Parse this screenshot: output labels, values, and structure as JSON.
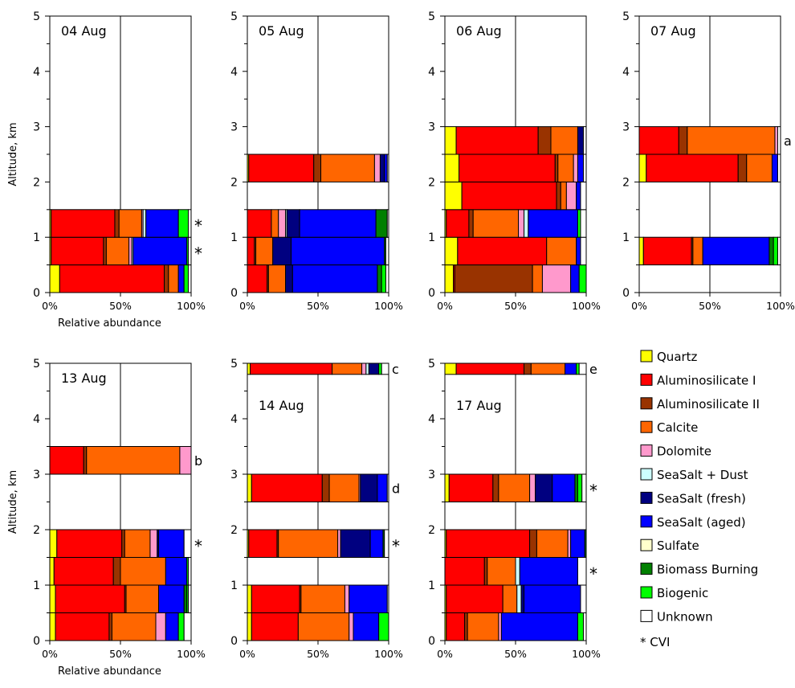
{
  "chart_data": {
    "type": "bar",
    "orientation": "horizontal-stacked-100",
    "ylabel": "Altitude, km",
    "xlabel": "Relative abundance",
    "ylim": [
      0,
      5
    ],
    "xlim": [
      0,
      100
    ],
    "yticks": [
      "0",
      "1",
      "2",
      "3",
      "4",
      "5"
    ],
    "xticks": [
      "0%",
      "50%",
      "100%"
    ],
    "cvi_marker": "*",
    "legend": {
      "placement": "bottom-right",
      "cvi_entry": "* CVI",
      "entries": [
        {
          "name": "Quartz",
          "color": "#ffff00"
        },
        {
          "name": "Aluminosilicate I",
          "color": "#ff0000"
        },
        {
          "name": "Aluminosilicate II",
          "color": "#993300"
        },
        {
          "name": "Calcite",
          "color": "#ff6600"
        },
        {
          "name": "Dolomite",
          "color": "#ff99cc"
        },
        {
          "name": "SeaSalt + Dust",
          "color": "#ccffff"
        },
        {
          "name": "SeaSalt (fresh)",
          "color": "#000080"
        },
        {
          "name": "SeaSalt (aged)",
          "color": "#0000ff"
        },
        {
          "name": "Sulfate",
          "color": "#ffffcc"
        },
        {
          "name": "Biomass Burning",
          "color": "#008000"
        },
        {
          "name": "Biogenic",
          "color": "#00ff00"
        },
        {
          "name": "Unknown",
          "color": "#ffffff"
        }
      ]
    },
    "panels": [
      {
        "date": "04 Aug",
        "show_xlabel": true,
        "bars": [
          {
            "alt": [
              0,
              0.5
            ],
            "values": [
              7,
              74,
              3,
              7,
              0,
              0,
              0,
              4,
              0,
              0,
              3,
              2
            ]
          },
          {
            "alt": [
              0.5,
              1.0
            ],
            "values": [
              1,
              37,
              2,
              16,
              2,
              1,
              0,
              38,
              0,
              0,
              1,
              2
            ],
            "note": "*"
          },
          {
            "alt": [
              1.0,
              1.5
            ],
            "values": [
              1,
              45,
              3,
              16,
              1,
              2,
              0,
              23,
              0,
              0,
              7,
              2
            ],
            "note": "*"
          }
        ]
      },
      {
        "date": "05 Aug",
        "show_xlabel": false,
        "bars": [
          {
            "alt": [
              0,
              0.5
            ],
            "values": [
              0,
              14,
              1,
              12,
              0,
              0,
              5,
              60,
              0,
              3,
              3,
              2
            ]
          },
          {
            "alt": [
              0.5,
              1.0
            ],
            "values": [
              0,
              5,
              1,
              12,
              0,
              0,
              13,
              66,
              0,
              1,
              0,
              2
            ]
          },
          {
            "alt": [
              1.0,
              1.5
            ],
            "values": [
              0,
              17,
              0,
              5,
              5,
              1,
              9,
              54,
              0,
              8,
              0,
              1
            ]
          },
          {
            "alt": [
              2.0,
              2.5
            ],
            "values": [
              1,
              46,
              5,
              38,
              4,
              0,
              3,
              2,
              0,
              0,
              0,
              1
            ]
          }
        ]
      },
      {
        "date": "06 Aug",
        "show_xlabel": false,
        "bars": [
          {
            "alt": [
              0,
              0.5
            ],
            "values": [
              6,
              1,
              55,
              7,
              20,
              0,
              0,
              6,
              0,
              0,
              5,
              0
            ]
          },
          {
            "alt": [
              0.5,
              1.0
            ],
            "values": [
              9,
              63,
              0,
              21,
              0,
              0,
              0,
              3,
              0,
              0,
              0,
              4
            ]
          },
          {
            "alt": [
              1.0,
              1.5
            ],
            "values": [
              1,
              16,
              3,
              32,
              4,
              3,
              0,
              35,
              0,
              0,
              2,
              4
            ]
          },
          {
            "alt": [
              1.5,
              2.0
            ],
            "values": [
              12,
              67,
              3,
              4,
              7,
              0,
              0,
              3,
              0,
              0,
              0,
              4
            ]
          },
          {
            "alt": [
              2.0,
              2.5
            ],
            "values": [
              10,
              68,
              2,
              11,
              3,
              0,
              0,
              4,
              0,
              0,
              0,
              2
            ]
          },
          {
            "alt": [
              2.5,
              3.0
            ],
            "values": [
              8,
              58,
              9,
              19,
              0,
              0,
              4,
              0,
              0,
              0,
              0,
              2
            ]
          }
        ]
      },
      {
        "date": "07 Aug",
        "show_xlabel": false,
        "bars": [
          {
            "alt": [
              0.5,
              1.0
            ],
            "values": [
              3,
              34,
              1,
              7,
              0,
              0,
              0,
              47,
              0,
              3,
              3,
              2
            ]
          },
          {
            "alt": [
              2.0,
              2.5
            ],
            "values": [
              5,
              65,
              6,
              18,
              0,
              0,
              0,
              4,
              0,
              0,
              0,
              2
            ]
          },
          {
            "alt": [
              2.5,
              3.0
            ],
            "values": [
              0,
              28,
              6,
              62,
              2,
              0,
              0,
              0,
              0,
              0,
              0,
              2
            ],
            "note": "a"
          }
        ]
      },
      {
        "date": "13 Aug",
        "show_xlabel": true,
        "bars": [
          {
            "alt": [
              0,
              0.5
            ],
            "values": [
              4,
              38,
              2,
              31,
              7,
              0,
              0,
              9,
              0,
              0,
              4,
              5
            ]
          },
          {
            "alt": [
              0.5,
              1.0
            ],
            "values": [
              4,
              49,
              1,
              23,
              0,
              0,
              0,
              18,
              0,
              2,
              1,
              2
            ]
          },
          {
            "alt": [
              1.0,
              1.5
            ],
            "values": [
              3,
              42,
              5,
              32,
              0,
              0,
              0,
              15,
              0,
              0,
              1,
              2
            ]
          },
          {
            "alt": [
              1.5,
              2.0
            ],
            "values": [
              5,
              46,
              2,
              18,
              5,
              0,
              1,
              18,
              0,
              0,
              0,
              5
            ],
            "note": "*"
          },
          {
            "alt": [
              3.0,
              3.5
            ],
            "values": [
              0,
              24,
              2,
              66,
              8,
              0,
              0,
              0,
              0,
              0,
              0,
              0
            ],
            "note": "b"
          }
        ]
      },
      {
        "date": "14 Aug",
        "show_xlabel": false,
        "bars": [
          {
            "alt": [
              0,
              0.5
            ],
            "values": [
              3,
              33,
              0,
              36,
              3,
              0,
              0,
              18,
              0,
              0,
              7,
              0
            ]
          },
          {
            "alt": [
              0.5,
              1.0
            ],
            "values": [
              3,
              34,
              1,
              31,
              3,
              0,
              0,
              27,
              0,
              0,
              0,
              1
            ]
          },
          {
            "alt": [
              1.5,
              2.0
            ],
            "values": [
              1,
              20,
              1,
              42,
              2,
              0,
              21,
              9,
              0,
              1,
              0,
              3
            ],
            "note": "*"
          },
          {
            "alt": [
              2.5,
              3.0
            ],
            "values": [
              3,
              50,
              5,
              21,
              1,
              0,
              12,
              7,
              0,
              0,
              0,
              1
            ],
            "note": "d"
          },
          {
            "alt": [
              4.8,
              5.0
            ],
            "values": [
              2,
              58,
              0,
              21,
              3,
              2,
              7,
              0,
              0,
              0,
              2,
              5
            ],
            "note": "c"
          }
        ]
      },
      {
        "date": "17 Aug",
        "show_xlabel": false,
        "bars": [
          {
            "alt": [
              0,
              0.5
            ],
            "values": [
              1,
              13,
              2,
              22,
              2,
              0,
              0,
              54,
              0,
              0,
              4,
              2
            ]
          },
          {
            "alt": [
              0.5,
              1.0
            ],
            "values": [
              1,
              40,
              0,
              10,
              0,
              3,
              2,
              40,
              0,
              0,
              0,
              4
            ]
          },
          {
            "alt": [
              1.0,
              1.5
            ],
            "values": [
              0,
              28,
              2,
              20,
              0,
              3,
              0,
              41,
              0,
              0,
              0,
              6
            ],
            "note": "*"
          },
          {
            "alt": [
              1.5,
              2.0
            ],
            "values": [
              1,
              59,
              5,
              22,
              2,
              0,
              0,
              10,
              0,
              1,
              0,
              0
            ]
          },
          {
            "alt": [
              2.5,
              3.0
            ],
            "values": [
              3,
              31,
              4,
              22,
              4,
              0,
              12,
              16,
              0,
              2,
              3,
              3
            ],
            "note": "*"
          },
          {
            "alt": [
              4.8,
              5.0
            ],
            "values": [
              8,
              48,
              5,
              24,
              0,
              0,
              0,
              8,
              0,
              0,
              2,
              5
            ],
            "note": "e"
          }
        ]
      }
    ]
  }
}
